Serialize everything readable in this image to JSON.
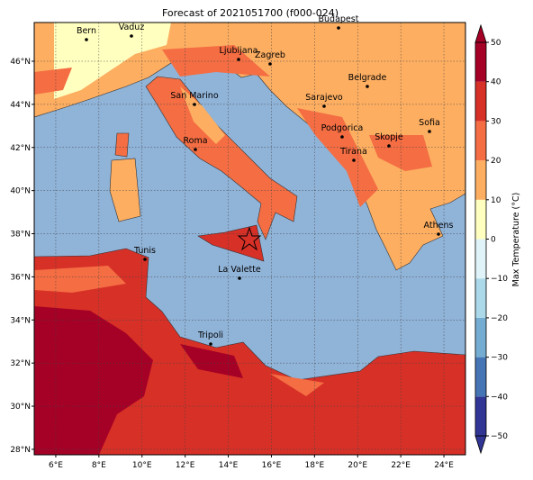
{
  "map": {
    "title": "Forecast of 2021051700 (f000-024)",
    "lon_ticks": [
      {
        "value": 6,
        "label": "6°E"
      },
      {
        "value": 8,
        "label": "8°E"
      },
      {
        "value": 10,
        "label": "10°E"
      },
      {
        "value": 12,
        "label": "12°E"
      },
      {
        "value": 14,
        "label": "14°E"
      },
      {
        "value": 16,
        "label": "16°E"
      },
      {
        "value": 18,
        "label": "18°E"
      },
      {
        "value": 20,
        "label": "20°E"
      },
      {
        "value": 22,
        "label": "22°E"
      },
      {
        "value": 24,
        "label": "24°E"
      }
    ],
    "lat_ticks": [
      {
        "value": 46,
        "label": "46°N"
      },
      {
        "value": 44,
        "label": "44°N"
      },
      {
        "value": 42,
        "label": "42°N"
      },
      {
        "value": 40,
        "label": "40°N"
      },
      {
        "value": 38,
        "label": "38°N"
      },
      {
        "value": 36,
        "label": "36°N"
      },
      {
        "value": 34,
        "label": "34°N"
      },
      {
        "value": 32,
        "label": "32°N"
      },
      {
        "value": 30,
        "label": "30°N"
      },
      {
        "value": 28,
        "label": "28°N"
      }
    ],
    "cities": [
      "Bern",
      "Vaduz",
      "Budapest",
      "Ljubljana",
      "Zagreb",
      "San Marino",
      "Belgrade",
      "Sarajevo",
      "Sofia",
      "Podgorica",
      "Skopje",
      "Roma",
      "Tirana",
      "Athens",
      "Tunis",
      "La Valette",
      "Tripoli"
    ]
  },
  "colorbar": {
    "label": "Max Temperature (°C)",
    "ticks": [
      {
        "value": -50,
        "label": "−50"
      },
      {
        "value": -40,
        "label": "−40"
      },
      {
        "value": -30,
        "label": "−30"
      },
      {
        "value": -20,
        "label": "−20"
      },
      {
        "value": -10,
        "label": "−10"
      },
      0,
      10,
      20,
      30,
      40,
      50
    ],
    "colors": [
      "#313695",
      "#4575b4",
      "#74add1",
      "#abd9e9",
      "#e0f3f8",
      "#ffffbf",
      "#fdae61",
      "#f46d43",
      "#d73027",
      "#a50026"
    ]
  }
}
